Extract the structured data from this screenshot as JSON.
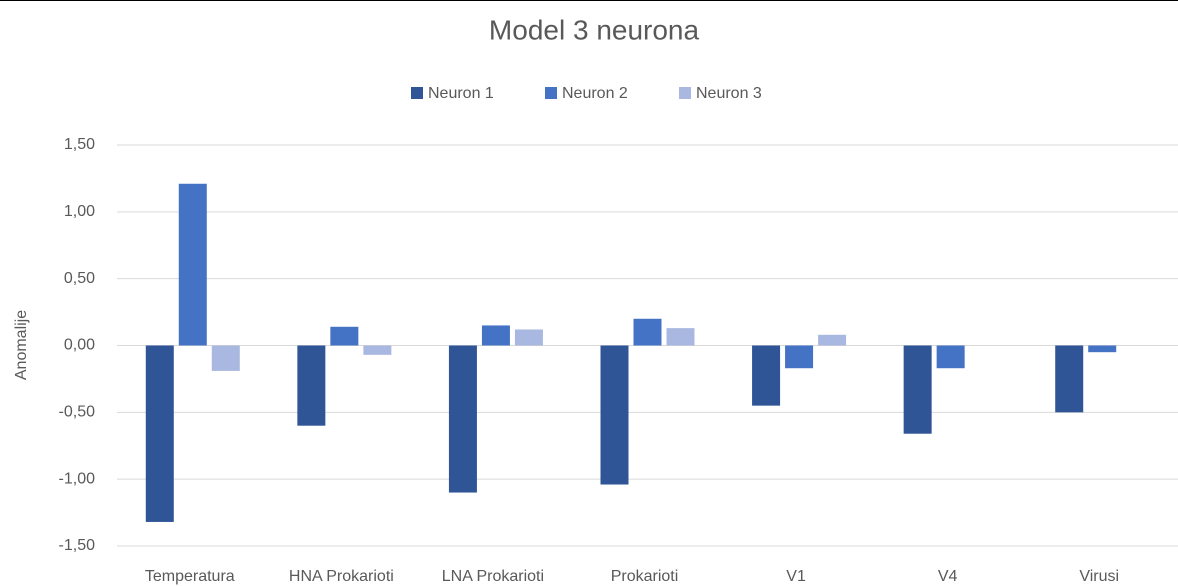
{
  "chart_data": {
    "type": "bar",
    "title": "Model 3 neurona",
    "y_label": "Anomalije",
    "categories": [
      "Temperatura",
      "HNA Prokarioti",
      "LNA Prokarioti",
      "Prokarioti",
      "V1",
      "V4",
      "Virusi"
    ],
    "series": [
      {
        "name": "Neuron 1",
        "color": "#2f5597",
        "values": [
          -1.32,
          -0.6,
          -1.1,
          -1.04,
          -0.45,
          -0.66,
          -0.5
        ]
      },
      {
        "name": "Neuron 2",
        "color": "#4472c4",
        "values": [
          1.21,
          0.14,
          0.15,
          0.2,
          -0.17,
          -0.17,
          -0.05
        ]
      },
      {
        "name": "Neuron 3",
        "color": "#a9b8e0",
        "values": [
          -0.19,
          -0.07,
          0.12,
          0.13,
          0.08,
          null,
          null
        ]
      }
    ],
    "ylim": [
      -1.5,
      1.5
    ],
    "yticks": [
      {
        "value": -1.5,
        "label": "-1,50"
      },
      {
        "value": -1,
        "label": "-1,00"
      },
      {
        "value": -0.5,
        "label": "-0,50"
      },
      {
        "value": 0,
        "label": "0,00"
      },
      {
        "value": 0.5,
        "label": "0,50"
      },
      {
        "value": 1,
        "label": "1,00"
      },
      {
        "value": 1.5,
        "label": "1,50"
      }
    ],
    "grid": true,
    "legend": "top"
  }
}
